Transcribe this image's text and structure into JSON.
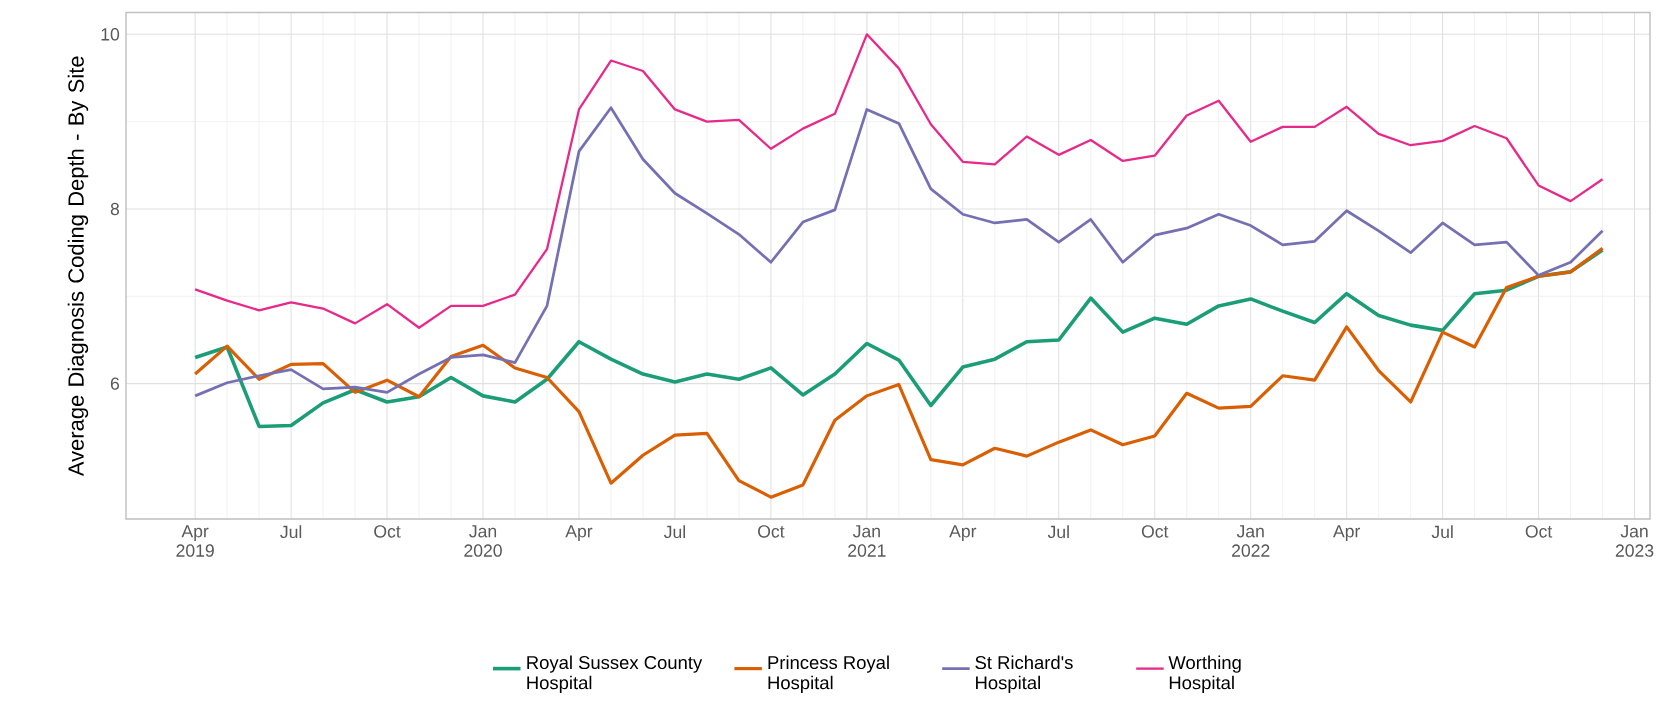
{
  "chart_data": {
    "type": "line",
    "ylabel": "Average Diagnosis Coding Depth - By Site",
    "x": [
      "2019-04",
      "2019-05",
      "2019-06",
      "2019-07",
      "2019-08",
      "2019-09",
      "2019-10",
      "2019-11",
      "2019-12",
      "2020-01",
      "2020-02",
      "2020-03",
      "2020-04",
      "2020-05",
      "2020-06",
      "2020-07",
      "2020-08",
      "2020-09",
      "2020-10",
      "2020-11",
      "2020-12",
      "2021-01",
      "2021-02",
      "2021-03",
      "2021-04",
      "2021-05",
      "2021-06",
      "2021-07",
      "2021-08",
      "2021-09",
      "2021-10",
      "2021-11",
      "2021-12",
      "2022-01",
      "2022-02",
      "2022-03",
      "2022-04",
      "2022-05",
      "2022-06",
      "2022-07",
      "2022-08",
      "2022-09",
      "2022-10",
      "2022-11",
      "2022-12"
    ],
    "series": [
      {
        "name": "Royal Sussex County Hospital",
        "color": "#1b9e77",
        "values": [
          6.3,
          6.42,
          5.51,
          5.52,
          5.78,
          5.93,
          5.79,
          5.85,
          6.07,
          5.86,
          5.79,
          6.05,
          6.48,
          6.28,
          6.11,
          6.02,
          6.11,
          6.05,
          6.18,
          5.87,
          6.11,
          6.46,
          6.27,
          5.75,
          6.19,
          6.28,
          6.48,
          6.5,
          6.98,
          6.59,
          6.75,
          6.68,
          6.89,
          6.97,
          6.83,
          6.7,
          7.03,
          6.78,
          6.67,
          6.61,
          7.03,
          7.07,
          7.23,
          7.28,
          7.53
        ]
      },
      {
        "name": "Princess Royal Hospital",
        "color": "#d95f02",
        "values": [
          6.11,
          6.43,
          6.05,
          6.22,
          6.23,
          5.9,
          6.04,
          5.85,
          6.31,
          6.44,
          6.18,
          6.07,
          5.68,
          4.86,
          5.18,
          5.41,
          5.43,
          4.89,
          4.7,
          4.84,
          5.58,
          5.86,
          5.99,
          5.13,
          5.07,
          5.26,
          5.17,
          5.33,
          5.47,
          5.3,
          5.4,
          5.89,
          5.72,
          5.74,
          6.09,
          6.04,
          6.65,
          6.15,
          5.79,
          6.59,
          6.42,
          7.1,
          7.23,
          7.28,
          7.55
        ]
      },
      {
        "name": "St Richard's Hospital",
        "color": "#7570b3",
        "values": [
          5.86,
          6.01,
          6.09,
          6.16,
          5.94,
          5.96,
          5.9,
          6.11,
          6.3,
          6.33,
          6.24,
          6.89,
          8.66,
          9.16,
          8.57,
          8.18,
          7.95,
          7.71,
          7.39,
          7.85,
          7.99,
          9.14,
          8.98,
          8.23,
          7.94,
          7.84,
          7.88,
          7.62,
          7.88,
          7.39,
          7.7,
          7.78,
          7.94,
          7.81,
          7.59,
          7.63,
          7.98,
          7.75,
          7.5,
          7.84,
          7.59,
          7.62,
          7.24,
          7.39,
          7.75
        ]
      },
      {
        "name": "Worthing Hospital",
        "color": "#e7298a",
        "values": [
          7.08,
          6.95,
          6.84,
          6.93,
          6.86,
          6.69,
          6.91,
          6.64,
          6.89,
          6.89,
          7.02,
          7.54,
          9.14,
          9.7,
          9.58,
          9.14,
          9.0,
          9.02,
          8.69,
          8.92,
          9.09,
          10.0,
          9.61,
          8.97,
          8.54,
          8.51,
          8.83,
          8.62,
          8.79,
          8.55,
          8.61,
          9.07,
          9.24,
          8.77,
          8.94,
          8.94,
          9.17,
          8.86,
          8.73,
          8.78,
          8.95,
          8.81,
          8.27,
          8.09,
          8.34
        ]
      }
    ],
    "xlim": [
      "2019-01-27",
      "2023-01-16"
    ],
    "xticks": [
      {
        "value": "2019-04",
        "label": "Apr 2019"
      },
      {
        "value": "2019-07",
        "label": "Jul"
      },
      {
        "value": "2019-10",
        "label": "Oct"
      },
      {
        "value": "2020-01",
        "label": "Jan 2020"
      },
      {
        "value": "2020-04",
        "label": "Apr"
      },
      {
        "value": "2020-07",
        "label": "Jul"
      },
      {
        "value": "2020-10",
        "label": "Oct"
      },
      {
        "value": "2021-01",
        "label": "Jan 2021"
      },
      {
        "value": "2021-04",
        "label": "Apr"
      },
      {
        "value": "2021-07",
        "label": "Jul"
      },
      {
        "value": "2021-10",
        "label": "Oct"
      },
      {
        "value": "2022-01",
        "label": "Jan 2022"
      },
      {
        "value": "2022-04",
        "label": "Apr"
      },
      {
        "value": "2022-07",
        "label": "Jul"
      },
      {
        "value": "2022-10",
        "label": "Oct"
      },
      {
        "value": "2023-01",
        "label": "Jan 2023"
      }
    ],
    "ylim": [
      4.45,
      10.25
    ],
    "yticks": [
      6,
      8,
      10
    ],
    "grid": true,
    "legend": "bottom",
    "line_style": "solid",
    "marker": "none"
  }
}
